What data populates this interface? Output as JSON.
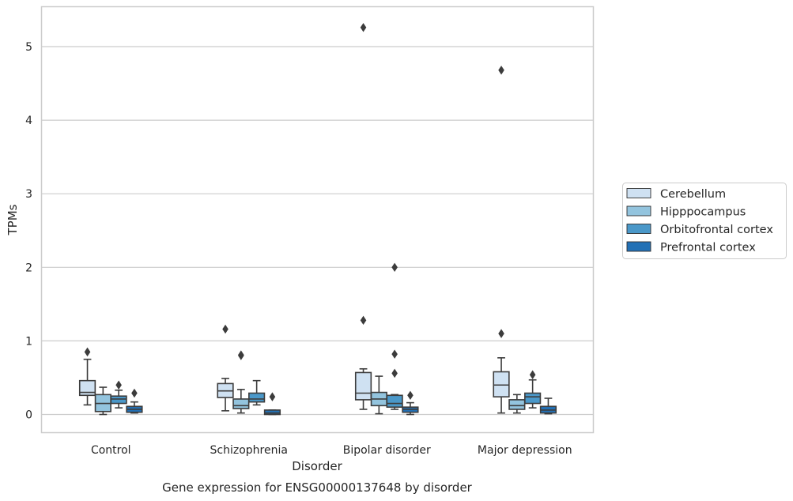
{
  "chart_data": {
    "type": "box",
    "title": "Gene expression for ENSG00000137648 by disorder",
    "xlabel": "Disorder",
    "ylabel": "TPMs",
    "ylim": [
      -0.25,
      5.55
    ],
    "yticks": [
      "0",
      "1",
      "2",
      "3",
      "4",
      "5"
    ],
    "grid": "horizontal",
    "legend_position": "right",
    "categories": [
      "Control",
      "Schizophrenia",
      "Bipolar disorder",
      "Major depression"
    ],
    "series": [
      {
        "name": "Cerebellum",
        "color": "#cfe1f2",
        "boxes": [
          {
            "whislo": 0.13,
            "q1": 0.26,
            "med": 0.3,
            "q3": 0.46,
            "whishi": 0.75,
            "fliers": [
              0.85
            ]
          },
          {
            "whislo": 0.05,
            "q1": 0.23,
            "med": 0.32,
            "q3": 0.42,
            "whishi": 0.49,
            "fliers": [
              1.16
            ]
          },
          {
            "whislo": 0.07,
            "q1": 0.2,
            "med": 0.29,
            "q3": 0.57,
            "whishi": 0.62,
            "fliers": [
              1.28,
              5.26
            ]
          },
          {
            "whislo": 0.02,
            "q1": 0.24,
            "med": 0.4,
            "q3": 0.58,
            "whishi": 0.77,
            "fliers": [
              1.1,
              4.68
            ]
          }
        ]
      },
      {
        "name": "Hipppocampus",
        "color": "#93c4de",
        "boxes": [
          {
            "whislo": 0.0,
            "q1": 0.04,
            "med": 0.15,
            "q3": 0.27,
            "whishi": 0.37,
            "fliers": []
          },
          {
            "whislo": 0.02,
            "q1": 0.08,
            "med": 0.12,
            "q3": 0.21,
            "whishi": 0.34,
            "fliers": [
              0.8,
              0.81
            ]
          },
          {
            "whislo": 0.01,
            "q1": 0.12,
            "med": 0.21,
            "q3": 0.3,
            "whishi": 0.52,
            "fliers": []
          },
          {
            "whislo": 0.02,
            "q1": 0.07,
            "med": 0.12,
            "q3": 0.2,
            "whishi": 0.27,
            "fliers": []
          }
        ]
      },
      {
        "name": "Orbitofrontal cortex",
        "color": "#4a98c9",
        "boxes": [
          {
            "whislo": 0.09,
            "q1": 0.15,
            "med": 0.21,
            "q3": 0.25,
            "whishi": 0.33,
            "fliers": [
              0.4
            ]
          },
          {
            "whislo": 0.13,
            "q1": 0.17,
            "med": 0.21,
            "q3": 0.29,
            "whishi": 0.46,
            "fliers": []
          },
          {
            "whislo": 0.07,
            "q1": 0.1,
            "med": 0.15,
            "q3": 0.26,
            "whishi": 0.27,
            "fliers": [
              0.56,
              0.82,
              2.0
            ]
          },
          {
            "whislo": 0.09,
            "q1": 0.15,
            "med": 0.24,
            "q3": 0.29,
            "whishi": 0.47,
            "fliers": [
              0.54
            ]
          }
        ]
      },
      {
        "name": "Prefrontal cortex",
        "color": "#2270b5",
        "boxes": [
          {
            "whislo": 0.02,
            "q1": 0.03,
            "med": 0.07,
            "q3": 0.11,
            "whishi": 0.17,
            "fliers": [
              0.29
            ]
          },
          {
            "whislo": 0.0,
            "q1": 0.0,
            "med": 0.02,
            "q3": 0.06,
            "whishi": 0.06,
            "fliers": [
              0.24
            ]
          },
          {
            "whislo": 0.0,
            "q1": 0.03,
            "med": 0.07,
            "q3": 0.1,
            "whishi": 0.16,
            "fliers": [
              0.26
            ]
          },
          {
            "whislo": 0.01,
            "q1": 0.02,
            "med": 0.06,
            "q3": 0.11,
            "whishi": 0.22,
            "fliers": []
          }
        ]
      }
    ]
  }
}
